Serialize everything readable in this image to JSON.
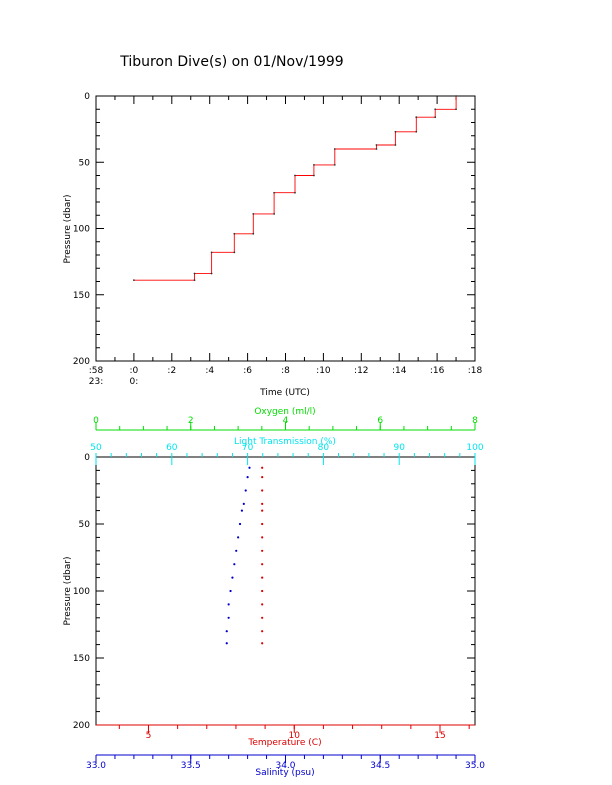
{
  "title": "Tiburon Dive(s) on 01/Nov/1999",
  "colors": {
    "axis": "#000000",
    "pressure_trace": "#ff0000",
    "oxygen": "#00dd00",
    "transmission": "#00e5ee",
    "temperature": "#dd0000",
    "salinity": "#0000cc"
  },
  "chart_data": [
    {
      "type": "line",
      "title": "Tiburon Dive(s) on 01/Nov/1999",
      "xlabel": "Time (UTC)",
      "ylabel": "Pressure (dbar)",
      "y_inverted": true,
      "ylim": [
        0,
        200
      ],
      "y_ticks": [
        "0",
        "50",
        "100",
        "150",
        "200"
      ],
      "x_tick_labels": [
        ":58",
        ":0",
        ":2",
        ":4",
        ":6",
        ":8",
        ":10",
        ":12",
        ":14",
        ":16",
        ":18"
      ],
      "x_hour_labels": [
        "23:",
        "0:"
      ],
      "x_minutes": [
        -2,
        0,
        2,
        4,
        6,
        8,
        10,
        12,
        14,
        16,
        18
      ],
      "series": [
        {
          "x": [
            0,
            3.2,
            3.2,
            4.1,
            4.1,
            5.3,
            5.3,
            6.3,
            6.3,
            7.4,
            7.4,
            8.5,
            8.5,
            9.5,
            9.5,
            10.6,
            10.6,
            12.8,
            12.8,
            13.8,
            13.8,
            14.9,
            14.9,
            15.9,
            15.9,
            17.0,
            17.0
          ],
          "y": [
            139,
            139,
            134,
            134,
            118,
            118,
            104,
            104,
            89,
            89,
            73,
            73,
            60,
            60,
            52,
            52,
            40,
            40,
            37,
            37,
            27,
            27,
            16,
            16,
            10,
            10,
            0
          ]
        }
      ]
    },
    {
      "type": "scatter",
      "ylabel": "Pressure (dbar)",
      "y_inverted": true,
      "ylim": [
        0,
        200
      ],
      "y_ticks": [
        "0",
        "50",
        "100",
        "150",
        "200"
      ],
      "axes": [
        {
          "label": "Oxygen (ml/l)",
          "position": "top",
          "range": [
            0,
            8
          ],
          "ticks": [
            "0",
            "2",
            "4",
            "6",
            "8"
          ]
        },
        {
          "label": "Light Transmission (%)",
          "position": "top",
          "range": [
            50,
            100
          ],
          "ticks": [
            "50",
            "60",
            "70",
            "80",
            "90",
            "100"
          ]
        },
        {
          "label": "Temperature (C)",
          "position": "bottom",
          "range": [
            3.2,
            16.2
          ],
          "ticks": [
            "5",
            "10",
            "15"
          ]
        },
        {
          "label": "Salinity (psu)",
          "position": "bottom",
          "range": [
            33.0,
            35.0
          ],
          "ticks": [
            "33.0",
            "33.5",
            "34.0",
            "34.5",
            "35.0"
          ]
        }
      ],
      "series": [
        {
          "variable": "salinity",
          "x": [
            33.81,
            33.8,
            33.79,
            33.78,
            33.77,
            33.76,
            33.75,
            33.74,
            33.73,
            33.72,
            33.71,
            33.7,
            33.7,
            33.69,
            33.69
          ],
          "y": [
            8,
            15,
            25,
            35,
            40,
            50,
            60,
            70,
            80,
            90,
            100,
            110,
            120,
            130,
            139
          ]
        },
        {
          "variable": "temperature",
          "x": [
            8.9,
            8.9,
            8.9,
            8.9,
            8.9,
            8.9,
            8.9,
            8.9,
            8.9,
            8.9,
            8.9,
            8.9,
            8.9,
            8.9,
            8.9
          ],
          "y": [
            8,
            15,
            25,
            35,
            40,
            50,
            60,
            70,
            80,
            90,
            100,
            110,
            120,
            130,
            139
          ]
        }
      ]
    }
  ]
}
